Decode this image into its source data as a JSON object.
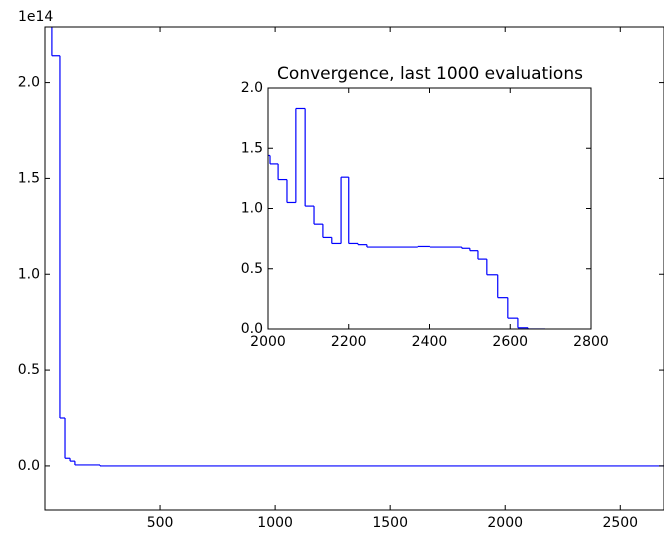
{
  "chart_data": [
    {
      "type": "step",
      "y_offset_label": "1e14",
      "color": "#0000ff",
      "x": [
        0,
        30,
        65,
        87,
        109,
        130,
        239,
        2690
      ],
      "values": [
        2.5,
        2.14,
        0.25,
        0.04,
        0.025,
        0.005,
        0.0,
        0.0
      ],
      "xlim": [
        0,
        2690
      ],
      "ylim": [
        -0.23,
        2.29
      ],
      "xticks": [
        500,
        1000,
        1500,
        2000,
        2500
      ],
      "yticks": [
        {
          "value": 0,
          "label": "0.0"
        },
        0.5,
        {
          "value": 1,
          "label": "1.0"
        },
        1.5,
        {
          "value": 2,
          "label": "2.0"
        }
      ]
    },
    {
      "type": "step",
      "title": "Convergence, last 1000 evaluations",
      "color": "#0000ff",
      "x": [
        2000,
        2005,
        2025,
        2047,
        2069,
        2092,
        2114,
        2136,
        2158,
        2181,
        2200,
        2223,
        2245,
        2371,
        2401,
        2480,
        2500,
        2520,
        2542,
        2569,
        2594,
        2619,
        2644,
        2686
      ],
      "values": [
        1.44,
        1.37,
        1.24,
        1.05,
        1.83,
        1.02,
        0.87,
        0.76,
        0.71,
        1.26,
        0.71,
        0.7,
        0.68,
        0.685,
        0.68,
        0.67,
        0.65,
        0.58,
        0.45,
        0.26,
        0.09,
        0.01,
        0.0,
        0.0
      ],
      "xlim": [
        2000,
        2800
      ],
      "ylim": [
        0,
        2
      ],
      "xticks": [
        2000,
        2200,
        2400,
        2600,
        2800
      ],
      "yticks": [
        {
          "value": 0,
          "label": "0.0"
        },
        0.5,
        {
          "value": 1,
          "label": "1.0"
        },
        1.5,
        {
          "value": 2,
          "label": "2.0"
        }
      ]
    }
  ]
}
